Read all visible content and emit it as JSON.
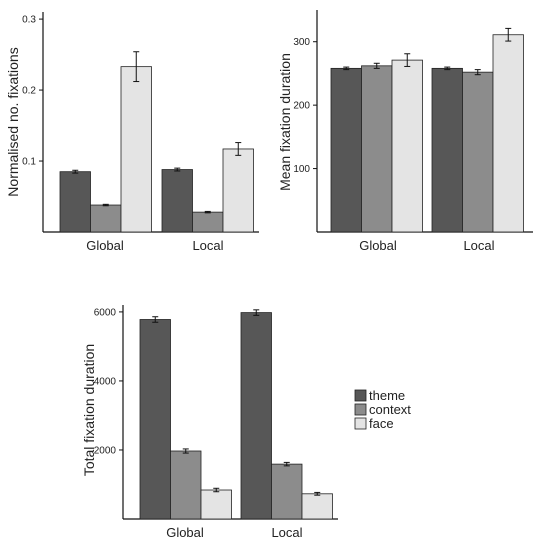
{
  "colors": {
    "theme": "#575757",
    "context": "#8c8c8c",
    "face": "#e4e4e4",
    "axis": "#111111",
    "bar_stroke": "#222222"
  },
  "legend": {
    "position": "right of bottom chart",
    "items": [
      "theme",
      "context",
      "face"
    ]
  },
  "chart_data": [
    {
      "type": "bar",
      "categories": [
        "Global",
        "Local"
      ],
      "series": [
        {
          "name": "theme",
          "values": [
            0.085,
            0.088
          ],
          "errors": [
            0.002,
            0.002
          ]
        },
        {
          "name": "context",
          "values": [
            0.038,
            0.028
          ],
          "errors": [
            0.001,
            0.001
          ]
        },
        {
          "name": "face",
          "values": [
            0.233,
            0.117
          ],
          "errors": [
            0.021,
            0.009
          ]
        }
      ],
      "title": "",
      "xlabel": "",
      "ylabel": "Normalised no. fixations",
      "ylim": [
        0,
        0.31
      ],
      "yticks": [
        0.1,
        0.2,
        0.3
      ],
      "ytick_labels": [
        "0.1",
        "0.2",
        "0.3"
      ],
      "grid": false
    },
    {
      "type": "bar",
      "categories": [
        "Global",
        "Local"
      ],
      "series": [
        {
          "name": "theme",
          "values": [
            258,
            258
          ],
          "errors": [
            2,
            2
          ]
        },
        {
          "name": "context",
          "values": [
            262,
            252
          ],
          "errors": [
            4,
            4
          ]
        },
        {
          "name": "face",
          "values": [
            271,
            311
          ],
          "errors": [
            10,
            10
          ]
        }
      ],
      "title": "",
      "xlabel": "",
      "ylabel": "Mean fixation duration",
      "ylim": [
        0,
        350
      ],
      "yticks": [
        100,
        200,
        300
      ],
      "ytick_labels": [
        "100",
        "200",
        "300"
      ],
      "grid": false
    },
    {
      "type": "bar",
      "categories": [
        "Global",
        "Local"
      ],
      "series": [
        {
          "name": "theme",
          "values": [
            5780,
            5980
          ],
          "errors": [
            80,
            80
          ]
        },
        {
          "name": "context",
          "values": [
            1970,
            1590
          ],
          "errors": [
            60,
            50
          ]
        },
        {
          "name": "face",
          "values": [
            840,
            730
          ],
          "errors": [
            50,
            40
          ]
        }
      ],
      "title": "",
      "xlabel": "",
      "ylabel": "Total fixation duration",
      "ylim": [
        0,
        6200
      ],
      "yticks": [
        2000,
        4000,
        6000
      ],
      "ytick_labels": [
        "2000",
        "4000",
        "6000"
      ],
      "grid": false
    }
  ]
}
